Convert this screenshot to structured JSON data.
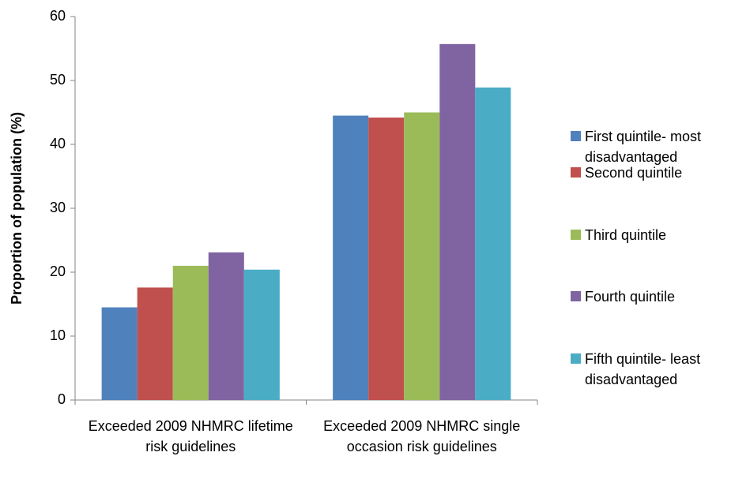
{
  "chart_data": {
    "type": "bar",
    "y_label": "Proportion of population (%)",
    "categories": [
      "Exceeded 2009 NHMRC lifetime risk guidelines",
      "Exceeded 2009 NHMRC single occasion risk guidelines"
    ],
    "series": [
      {
        "name": "First quintile- most disadvantaged",
        "color": "#4f81bd",
        "values": [
          14.5,
          44.5
        ]
      },
      {
        "name": "Second quintile",
        "color": "#c0504d",
        "values": [
          17.6,
          44.2
        ]
      },
      {
        "name": "Third quintile",
        "color": "#9bbb59",
        "values": [
          21,
          45
        ]
      },
      {
        "name": "Fourth quintile",
        "color": "#8064a2",
        "values": [
          23.1,
          55.7
        ]
      },
      {
        "name": "Fifth quintile- least disadvantaged",
        "color": "#4bacc6",
        "values": [
          20.4,
          48.9
        ]
      }
    ],
    "ylim": [
      0,
      60
    ],
    "yticks": [
      0,
      10,
      20,
      30,
      40,
      50,
      60
    ],
    "grid": false,
    "legend": "right"
  }
}
